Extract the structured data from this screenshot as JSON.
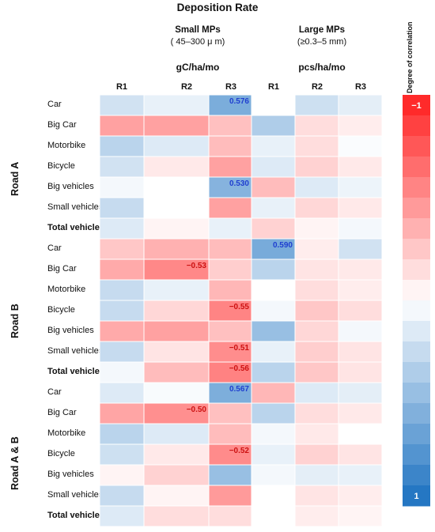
{
  "chart_data": {
    "type": "heatmap",
    "title": "Deposition Rate",
    "column_groups": [
      {
        "name": "Small MPs",
        "subtitle": "( 45–300 μ m)",
        "unit": "gC/ha/mo",
        "columns": [
          "R1",
          "R2",
          "R3"
        ]
      },
      {
        "name": "Large MPs",
        "subtitle": "(≥0.3–5 mm)",
        "unit": "pcs/ha/mo",
        "columns": [
          "R1",
          "R2",
          "R3"
        ]
      }
    ],
    "row_groups": [
      {
        "name": "Road A",
        "rows": [
          "Car",
          "Big Car",
          "Motorbike",
          "Bicycle",
          "Big vehicles",
          "Small vehicles",
          "Total vehicles"
        ]
      },
      {
        "name": "Road B",
        "rows": [
          "Car",
          "Big Car",
          "Motorbike",
          "Bicycle",
          "Big vehicles",
          "Small vehicles",
          "Total vehicles"
        ]
      },
      {
        "name": "Road A & B",
        "rows": [
          "Car",
          "Big Car",
          "Motorbike",
          "Bicycle",
          "Big vehicles",
          "Small vehicles",
          "Total vehicles"
        ]
      }
    ],
    "bold_rows": [
      "Total vehicles"
    ],
    "values": [
      [
        0.2,
        0.1,
        0.576,
        0.0,
        0.22,
        0.12
      ],
      [
        -0.42,
        -0.42,
        -0.28,
        0.35,
        -0.15,
        -0.08
      ],
      [
        0.3,
        0.15,
        -0.3,
        0.1,
        -0.15,
        0.02
      ],
      [
        0.2,
        -0.1,
        -0.42,
        0.15,
        -0.2,
        -0.1
      ],
      [
        0.05,
        0.0,
        0.53,
        -0.3,
        0.15,
        0.08
      ],
      [
        0.25,
        0.0,
        -0.42,
        0.1,
        -0.18,
        -0.1
      ],
      [
        0.15,
        -0.05,
        0.1,
        -0.2,
        -0.05,
        0.05
      ],
      [
        -0.25,
        -0.35,
        -0.3,
        0.59,
        -0.08,
        0.2
      ],
      [
        -0.38,
        -0.53,
        -0.22,
        0.3,
        -0.12,
        -0.1
      ],
      [
        0.25,
        0.1,
        -0.32,
        0.0,
        -0.15,
        -0.08
      ],
      [
        0.25,
        -0.18,
        -0.55,
        0.05,
        -0.25,
        -0.15
      ],
      [
        -0.38,
        -0.42,
        -0.28,
        0.45,
        -0.18,
        0.05
      ],
      [
        0.25,
        -0.12,
        -0.51,
        0.1,
        -0.22,
        -0.12
      ],
      [
        0.05,
        -0.3,
        -0.56,
        0.3,
        -0.25,
        -0.12
      ],
      [
        0.15,
        0.03,
        0.567,
        -0.32,
        0.15,
        0.12
      ],
      [
        -0.4,
        -0.5,
        -0.28,
        0.3,
        -0.15,
        -0.1
      ],
      [
        0.3,
        0.15,
        -0.3,
        0.05,
        -0.1,
        0.0
      ],
      [
        0.22,
        -0.1,
        -0.52,
        0.1,
        -0.2,
        -0.12
      ],
      [
        -0.05,
        -0.2,
        0.45,
        0.05,
        0.12,
        0.1
      ],
      [
        0.25,
        -0.05,
        -0.45,
        0.0,
        -0.12,
        -0.08
      ],
      [
        0.15,
        -0.15,
        -0.15,
        0.0,
        -0.08,
        -0.05
      ]
    ],
    "labeled_values": [
      {
        "row": 0,
        "col": 2,
        "label": "0.576"
      },
      {
        "row": 4,
        "col": 2,
        "label": "0.530"
      },
      {
        "row": 7,
        "col": 3,
        "label": "0.590"
      },
      {
        "row": 8,
        "col": 1,
        "label": "−0.53"
      },
      {
        "row": 10,
        "col": 2,
        "label": "−0.55"
      },
      {
        "row": 12,
        "col": 2,
        "label": "−0.51"
      },
      {
        "row": 13,
        "col": 2,
        "label": "−0.56"
      },
      {
        "row": 14,
        "col": 2,
        "label": "0.567"
      },
      {
        "row": 15,
        "col": 1,
        "label": "−0.50"
      },
      {
        "row": 17,
        "col": 2,
        "label": "−0.52"
      }
    ],
    "colorbar": {
      "title": "Degree of correlation",
      "range": [
        -1,
        1
      ],
      "tick_labels": {
        "top": "−1",
        "bottom": "1"
      },
      "colors": {
        "negative": "#ff1f1f",
        "neutral": "#ffffff",
        "positive": "#1a70c0"
      }
    }
  }
}
